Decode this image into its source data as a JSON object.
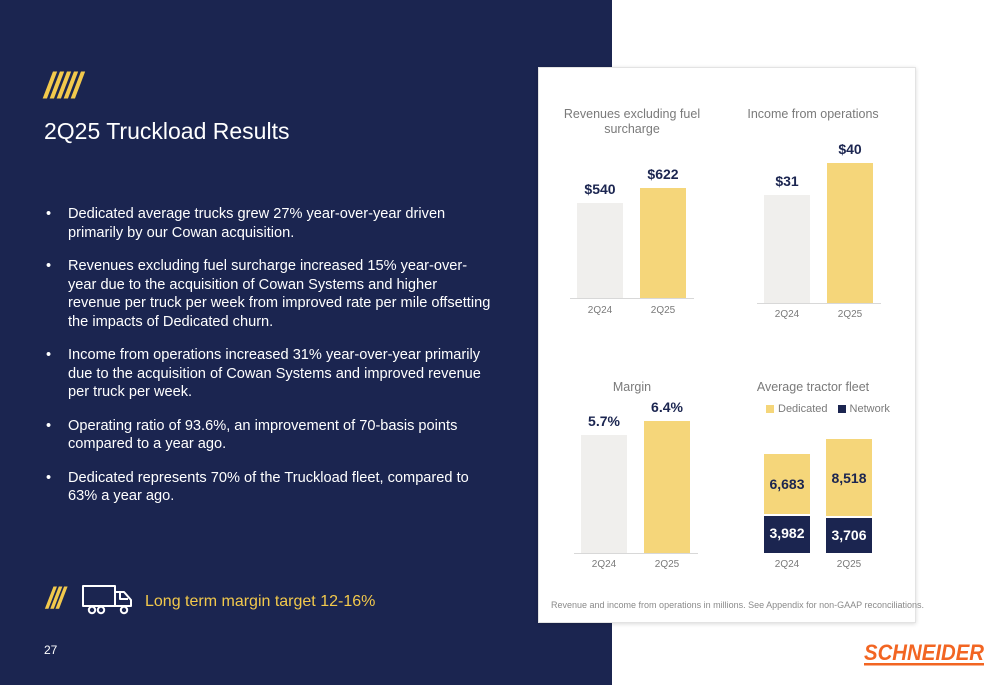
{
  "slide": {
    "slashes": "/////",
    "title": "2Q25 Truckload Results",
    "bullets": [
      "Dedicated average trucks grew 27% year-over-year driven primarily by our Cowan acquisition.",
      "Revenues excluding fuel surcharge increased 15% year-over-year due to the acquisition of Cowan Systems and higher revenue per truck per week from improved rate per mile offsetting the impacts of Dedicated churn.",
      "Income from operations increased 31% year-over-year primarily due to the acquisition of Cowan Systems and improved revenue per truck per week.",
      "Operating ratio of 93.6%, an improvement of 70-basis points compared to a year ago.",
      "Dedicated represents 70% of the Truckload fleet, compared to 63% a year ago."
    ],
    "bullet_marker": "•",
    "footer_slashes": "///",
    "target_text": "Long term margin target 12-16%",
    "page_number": "27",
    "footnote": "Revenue and income from operations in millions. See Appendix for non-GAAP reconciliations.",
    "logo_text": "SCHNEIDER"
  },
  "colors": {
    "navy": "#1b2550",
    "gold": "#f2c94c",
    "bar_prior": "#f0efed",
    "bar_current": "#f5d67a",
    "logo": "#f26522"
  },
  "icons": {
    "truck": "truck-icon"
  },
  "chart_data": [
    {
      "type": "bar",
      "title": "Revenues excluding fuel surcharge",
      "categories": [
        "2Q24",
        "2Q25"
      ],
      "values": [
        540,
        622
      ],
      "labels": [
        "$540",
        "$622"
      ],
      "ylim": [
        0,
        622
      ]
    },
    {
      "type": "bar",
      "title": "Income from operations",
      "categories": [
        "2Q24",
        "2Q25"
      ],
      "values": [
        31,
        40
      ],
      "labels": [
        "$31",
        "$40"
      ],
      "ylim": [
        0,
        40
      ]
    },
    {
      "type": "bar",
      "title": "Margin",
      "categories": [
        "2Q24",
        "2Q25"
      ],
      "values": [
        5.7,
        6.4
      ],
      "labels": [
        "5.7%",
        "6.4%"
      ],
      "ylim": [
        0,
        6.4
      ]
    },
    {
      "type": "bar",
      "stacked": true,
      "title": "Average tractor fleet",
      "categories": [
        "2Q24",
        "2Q25"
      ],
      "legend": [
        "Dedicated",
        "Network"
      ],
      "series": [
        {
          "name": "Network",
          "values": [
            3982,
            3706
          ],
          "labels": [
            "3,982",
            "3,706"
          ]
        },
        {
          "name": "Dedicated",
          "values": [
            6683,
            8518
          ],
          "labels": [
            "6,683",
            "8,518"
          ]
        }
      ],
      "ylim": [
        0,
        12224
      ]
    }
  ]
}
